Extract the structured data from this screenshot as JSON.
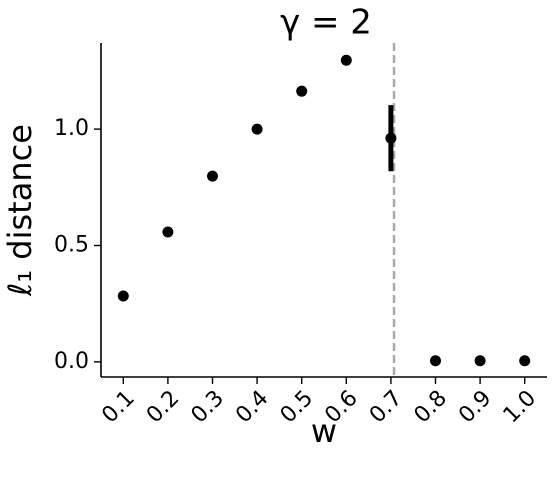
{
  "chart_data": {
    "type": "scatter",
    "title": "γ = 2",
    "xlabel": "w",
    "ylabel": "ℓ₁ distance",
    "x": [
      0.1,
      0.2,
      0.3,
      0.4,
      0.5,
      0.6,
      0.7,
      0.8,
      0.9,
      1.0
    ],
    "values": [
      0.283,
      0.558,
      0.798,
      1.0,
      1.163,
      1.296,
      0.961,
      0.005,
      0.005,
      0.005
    ],
    "errors": [
      null,
      null,
      null,
      null,
      null,
      null,
      0.142,
      null,
      null,
      null
    ],
    "color": "#000000",
    "vline": 0.707,
    "vline_color": "#aaaaaa",
    "xlim": [
      0.05,
      1.05
    ],
    "ylim": [
      -0.065,
      1.37
    ],
    "xticks": [
      0.1,
      0.2,
      0.3,
      0.4,
      0.5,
      0.6,
      0.7,
      0.8,
      0.9,
      {
        "value": 1,
        "label": "1.0"
      }
    ],
    "yticks": [
      {
        "value": 0,
        "label": "0.0"
      },
      0.5,
      {
        "value": 1,
        "label": "1.0"
      }
    ],
    "grid": false
  }
}
